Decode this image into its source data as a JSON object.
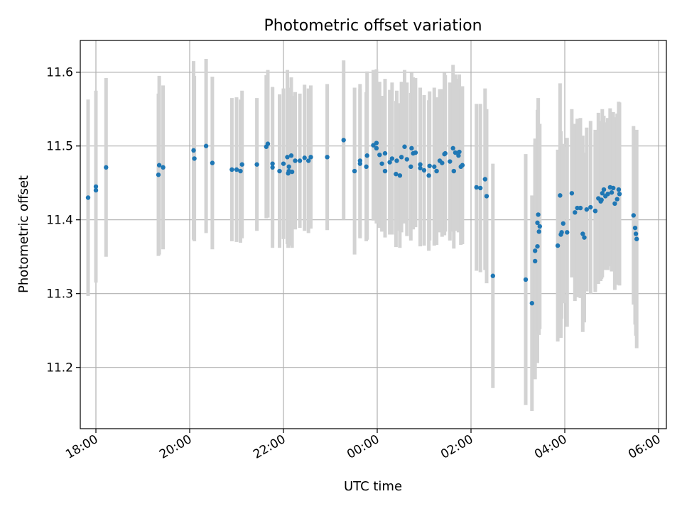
{
  "chart_data": {
    "type": "scatter",
    "title": "Photometric offset variation",
    "xlabel": "UTC time",
    "ylabel": "Photometric offset",
    "x_axis": {
      "kind": "time",
      "range": [
        "17:40",
        "06:10"
      ],
      "ticks": [
        "18:00",
        "20:00",
        "22:00",
        "00:00",
        "02:00",
        "04:00",
        "06:00"
      ]
    },
    "y_axis": {
      "range": [
        11.117,
        11.643
      ],
      "ticks": [
        "11.2",
        "11.3",
        "11.4",
        "11.5",
        "11.6"
      ]
    },
    "grid": true,
    "marker_color": "#1f77b4",
    "errorbar_color": "#d3d3d3",
    "series": [
      {
        "x": [
          "17:50",
          "18:00",
          "18:00",
          "18:13",
          "19:20",
          "19:21",
          "19:26",
          "20:05",
          "20:06",
          "20:21",
          "20:29",
          "20:54",
          "21:00",
          "21:05",
          "21:07",
          "21:26",
          "21:38",
          "21:40",
          "21:46",
          "21:46",
          "21:55",
          "22:00",
          "22:05",
          "22:06",
          "22:07",
          "22:07",
          "22:10",
          "22:11",
          "22:15",
          "22:21",
          "22:27",
          "22:32",
          "22:35",
          "22:56",
          "23:17",
          "23:31",
          "23:38",
          "23:38",
          "23:46",
          "23:47",
          "23:55",
          "23:59",
          "23:59",
          "00:03",
          "00:06",
          "00:10",
          "00:10",
          "00:16",
          "00:19",
          "00:24",
          "00:25",
          "00:29",
          "00:31",
          "00:35",
          "00:38",
          "00:43",
          "00:44",
          "00:46",
          "00:49",
          "00:55",
          "00:55",
          "01:00",
          "01:06",
          "01:07",
          "01:13",
          "01:16",
          "01:20",
          "01:23",
          "01:26",
          "01:27",
          "01:33",
          "01:37",
          "01:38",
          "01:40",
          "01:44",
          "01:45",
          "01:47",
          "01:49",
          "02:07",
          "02:12",
          "02:18",
          "02:20",
          "02:28",
          "03:10",
          "03:18",
          "03:22",
          "03:22",
          "03:25",
          "03:25",
          "03:26",
          "03:27",
          "03:28",
          "03:51",
          "03:54",
          "03:55",
          "03:56",
          "03:58",
          "04:03",
          "04:09",
          "04:13",
          "04:16",
          "04:20",
          "04:23",
          "04:25",
          "04:28",
          "04:33",
          "04:39",
          "04:39",
          "04:43",
          "04:46",
          "04:47",
          "04:48",
          "04:50",
          "04:52",
          "04:55",
          "04:58",
          "05:00",
          "05:02",
          "05:04",
          "05:07",
          "05:09",
          "05:10",
          "05:28",
          "05:30",
          "05:31",
          "05:32"
        ],
        "y": [
          11.43,
          11.44,
          11.445,
          11.471,
          11.461,
          11.474,
          11.471,
          11.494,
          11.483,
          11.5,
          11.477,
          11.468,
          11.468,
          11.466,
          11.475,
          11.475,
          11.499,
          11.503,
          11.471,
          11.476,
          11.466,
          11.476,
          11.485,
          11.463,
          11.466,
          11.472,
          11.487,
          11.465,
          11.48,
          11.48,
          11.484,
          11.48,
          11.485,
          11.485,
          11.508,
          11.466,
          11.48,
          11.476,
          11.472,
          11.487,
          11.501,
          11.497,
          11.504,
          11.488,
          11.476,
          11.466,
          11.49,
          11.478,
          11.483,
          11.462,
          11.48,
          11.46,
          11.485,
          11.499,
          11.482,
          11.472,
          11.497,
          11.49,
          11.491,
          11.475,
          11.47,
          11.467,
          11.46,
          11.473,
          11.472,
          11.466,
          11.48,
          11.477,
          11.489,
          11.49,
          11.479,
          11.497,
          11.466,
          11.491,
          11.487,
          11.492,
          11.472,
          11.474,
          11.444,
          11.443,
          11.455,
          11.432,
          11.324,
          11.319,
          11.287,
          11.344,
          11.358,
          11.364,
          11.396,
          11.407,
          11.384,
          11.391,
          11.365,
          11.433,
          11.38,
          11.383,
          11.395,
          11.383,
          11.436,
          11.41,
          11.416,
          11.416,
          11.381,
          11.376,
          11.414,
          11.417,
          11.412,
          11.412,
          11.429,
          11.425,
          11.427,
          11.436,
          11.441,
          11.432,
          11.435,
          11.444,
          11.437,
          11.443,
          11.422,
          11.428,
          11.441,
          11.435,
          11.406,
          11.389,
          11.381,
          11.374
        ],
        "err": [
          0.133,
          0.125,
          0.13,
          0.121,
          0.11,
          0.121,
          0.111,
          0.121,
          0.112,
          0.118,
          0.117,
          0.097,
          0.098,
          0.097,
          0.1,
          0.09,
          0.097,
          0.1,
          0.109,
          0.103,
          0.104,
          0.102,
          0.118,
          0.101,
          0.1,
          0.107,
          0.106,
          0.103,
          0.093,
          0.091,
          0.099,
          0.098,
          0.097,
          0.099,
          0.108,
          0.113,
          0.104,
          0.101,
          0.101,
          0.114,
          0.102,
          0.102,
          0.1,
          0.099,
          0.092,
          0.09,
          0.101,
          0.098,
          0.103,
          0.099,
          0.095,
          0.098,
          0.102,
          0.104,
          0.104,
          0.1,
          0.102,
          0.103,
          0.101,
          0.104,
          0.106,
          0.102,
          0.102,
          0.101,
          0.107,
          0.1,
          0.097,
          0.1,
          0.11,
          0.106,
          0.107,
          0.113,
          0.105,
          0.106,
          0.104,
          0.105,
          0.106,
          0.107,
          0.113,
          0.114,
          0.123,
          0.118,
          0.152,
          0.17,
          0.146,
          0.16,
          0.152,
          0.158,
          0.153,
          0.158,
          0.14,
          0.139,
          0.13,
          0.152,
          0.14,
          0.117,
          0.108,
          0.128,
          0.114,
          0.12,
          0.121,
          0.122,
          0.133,
          0.115,
          0.111,
          0.117,
          0.11,
          0.105,
          0.116,
          0.108,
          0.107,
          0.114,
          0.1,
          0.1,
          0.103,
          0.107,
          0.107,
          0.103,
          0.117,
          0.116,
          0.119,
          0.124,
          0.121,
          0.131,
          0.138,
          0.148
        ]
      }
    ]
  }
}
